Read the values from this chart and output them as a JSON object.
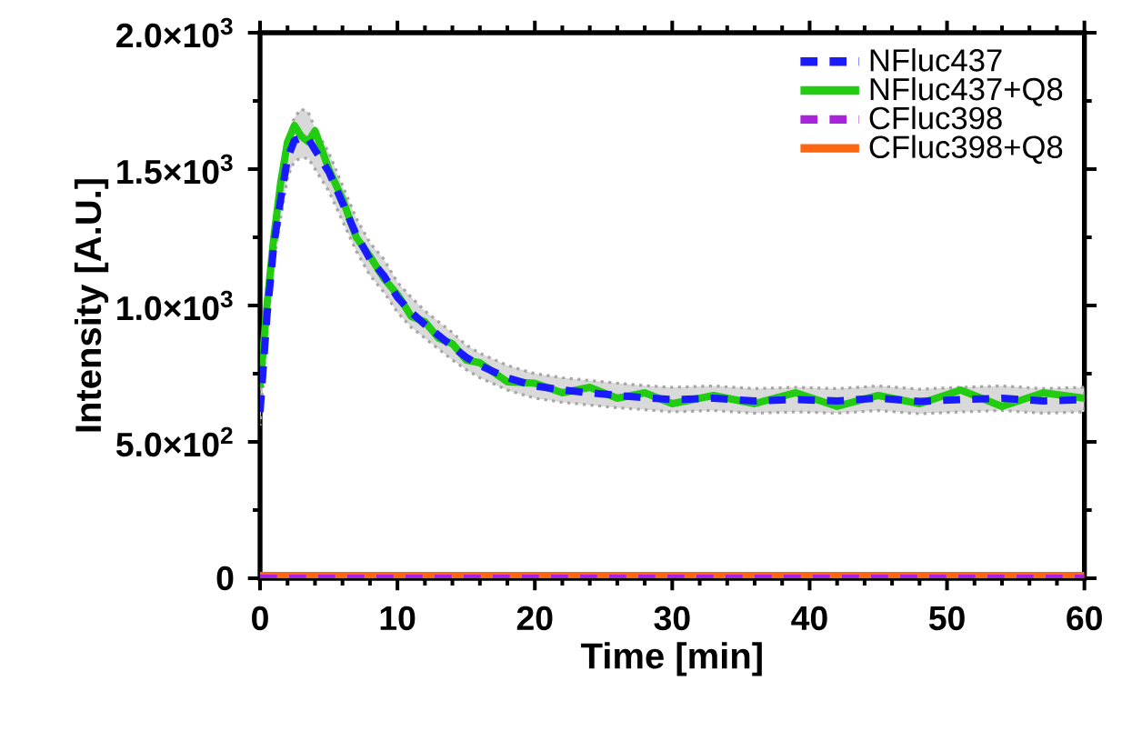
{
  "chart_data": {
    "type": "line",
    "xlabel": "Time [min]",
    "ylabel": "Intensity [A.U.]",
    "x": [
      0,
      0.5,
      1,
      1.5,
      2,
      2.5,
      3,
      3.5,
      4,
      5,
      6,
      7,
      8,
      9,
      10,
      11,
      12,
      13,
      14,
      15,
      16,
      18,
      20,
      22,
      24,
      26,
      28,
      30,
      33,
      36,
      39,
      42,
      45,
      48,
      51,
      54,
      57,
      60
    ],
    "series": [
      {
        "name": "NFluc437",
        "color": "#1a1aff",
        "line_style": "dashed",
        "values": [
          609,
          960,
          1220,
          1390,
          1540,
          1605,
          1615,
          1612,
          1570,
          1490,
          1376,
          1260,
          1170,
          1110,
          1030,
          975,
          930,
          890,
          850,
          810,
          780,
          735,
          705,
          690,
          680,
          670,
          662,
          655,
          660,
          650,
          655,
          650,
          660,
          648,
          655,
          660,
          650,
          655
        ],
        "lower": [
          560,
          900,
          1160,
          1320,
          1470,
          1530,
          1540,
          1540,
          1500,
          1420,
          1310,
          1200,
          1110,
          1050,
          975,
          920,
          880,
          840,
          800,
          765,
          735,
          690,
          660,
          645,
          635,
          625,
          618,
          610,
          615,
          605,
          610,
          605,
          615,
          603,
          610,
          615,
          605,
          610
        ],
        "upper": [
          660,
          1020,
          1280,
          1460,
          1610,
          1690,
          1720,
          1710,
          1650,
          1560,
          1440,
          1320,
          1230,
          1170,
          1085,
          1030,
          980,
          940,
          900,
          855,
          825,
          780,
          750,
          735,
          725,
          715,
          706,
          700,
          705,
          695,
          700,
          695,
          705,
          693,
          700,
          705,
          695,
          700
        ]
      },
      {
        "name": "NFluc437+Q8",
        "color": "#22cc11",
        "line_style": "solid",
        "values": [
          700,
          1000,
          1250,
          1450,
          1600,
          1660,
          1620,
          1600,
          1640,
          1500,
          1390,
          1250,
          1180,
          1100,
          1040,
          960,
          940,
          880,
          860,
          800,
          790,
          720,
          715,
          680,
          700,
          660,
          680,
          640,
          670,
          640,
          680,
          630,
          670,
          640,
          690,
          630,
          680,
          660
        ]
      },
      {
        "name": "CFluc398",
        "color": "#aa22dd",
        "line_style": "dashed",
        "values": [
          0,
          0,
          0,
          0,
          0,
          0,
          0,
          0,
          0,
          0,
          0,
          0,
          0,
          0,
          0,
          0,
          0,
          0,
          0,
          0,
          0,
          0,
          0,
          0,
          0,
          0,
          0,
          0,
          0,
          0,
          0,
          0,
          0,
          0,
          0,
          0,
          0,
          0
        ]
      },
      {
        "name": "CFluc398+Q8",
        "color": "#ff6611",
        "line_style": "solid",
        "values": [
          10,
          10,
          10,
          10,
          10,
          10,
          10,
          10,
          10,
          10,
          10,
          10,
          10,
          10,
          10,
          10,
          10,
          10,
          10,
          10,
          10,
          10,
          10,
          10,
          10,
          10,
          10,
          10,
          10,
          10,
          10,
          10,
          10,
          10,
          10,
          10,
          10,
          10
        ]
      }
    ],
    "xlim": [
      0,
      60
    ],
    "xticks": [
      0,
      10,
      20,
      30,
      40,
      50,
      60
    ],
    "ylim": [
      0,
      2000
    ],
    "yticks": [
      {
        "value": 0,
        "label": "0"
      },
      {
        "value": 500,
        "label": "5.0×10$^{2}$"
      },
      {
        "value": 1000,
        "label": "1.0×10$^{3}$"
      },
      {
        "value": 1500,
        "label": "1.5×10$^{3}$"
      },
      {
        "value": 2000,
        "label": "2.0×10$^{3}$"
      }
    ],
    "legend": "top right",
    "marker": "none"
  }
}
